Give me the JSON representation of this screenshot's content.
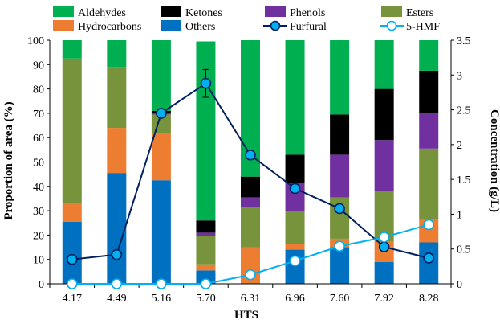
{
  "chart_data": {
    "type": "bar",
    "stacked": true,
    "categories": [
      "4.17",
      "4.49",
      "5.16",
      "5.70",
      "6.31",
      "6.96",
      "7.60",
      "7.92",
      "8.28"
    ],
    "xlabel": "HTS",
    "ylabel": "Proportion of area (%)",
    "y2label": "Concentration (g/L)",
    "ylim": [
      0,
      100
    ],
    "y2lim": [
      0,
      3.5
    ],
    "yticks": [
      0,
      10,
      20,
      30,
      40,
      50,
      60,
      70,
      80,
      90,
      100
    ],
    "y2ticks": [
      "0",
      "0.5",
      "1",
      "1.5",
      "2",
      "2.5",
      "3",
      "3.5"
    ],
    "legend_position": "top",
    "series": [
      {
        "name": "Others",
        "color": "#0070C0",
        "values": [
          25.5,
          45.5,
          42.5,
          5.5,
          0,
          14,
          15,
          9,
          17
        ]
      },
      {
        "name": "Hydrocarbons",
        "color": "#ED7D31",
        "values": [
          7.5,
          18.5,
          19.5,
          2.5,
          15,
          2.5,
          3.5,
          8.5,
          9.5
        ]
      },
      {
        "name": "Esters",
        "color": "#77933C",
        "values": [
          59.5,
          25,
          7.5,
          11.5,
          16.5,
          13.5,
          17,
          20.5,
          29
        ]
      },
      {
        "name": "Phenols",
        "color": "#7030A0",
        "values": [
          0,
          0,
          0.5,
          1.5,
          4,
          11.5,
          17.5,
          21,
          14.5
        ]
      },
      {
        "name": "Ketones",
        "color": "#000000",
        "values": [
          0,
          0,
          1,
          5,
          8.5,
          11.5,
          16.5,
          21,
          17.5
        ]
      },
      {
        "name": "Aldehydes",
        "color": "#00B050",
        "values": [
          7.5,
          11,
          29,
          73.5,
          56,
          47,
          30.5,
          20,
          12.5
        ]
      }
    ],
    "lines": [
      {
        "name": "Furfural",
        "axis": "y2",
        "color": "#002060",
        "marker_fill": "#00B0F0",
        "marker_edge": "#002060",
        "values": [
          0.35,
          0.42,
          2.45,
          2.88,
          1.85,
          1.37,
          1.08,
          0.53,
          0.37
        ],
        "error_bars": [
          0,
          0,
          0,
          0.2,
          0,
          0,
          0,
          0,
          0
        ]
      },
      {
        "name": "5-HMF",
        "axis": "y2",
        "color": "#00B0F0",
        "marker_fill": "#ffffff",
        "marker_edge": "#00B0F0",
        "values": [
          0,
          0,
          0,
          0,
          0.13,
          0.33,
          0.54,
          0.67,
          0.85
        ],
        "error_bars": [
          0,
          0,
          0,
          0,
          0,
          0,
          0,
          0,
          0
        ]
      }
    ],
    "legend": [
      {
        "name": "Aldehydes",
        "kind": "patch",
        "color": "#00B050"
      },
      {
        "name": "Ketones",
        "kind": "patch",
        "color": "#000000"
      },
      {
        "name": "Phenols",
        "kind": "patch",
        "color": "#7030A0"
      },
      {
        "name": "Esters",
        "kind": "patch",
        "color": "#77933C"
      },
      {
        "name": "Hydrocarbons",
        "kind": "patch",
        "color": "#ED7D31"
      },
      {
        "name": "Others",
        "kind": "patch",
        "color": "#0070C0"
      },
      {
        "name": "Furfural",
        "kind": "line",
        "color": "#002060",
        "marker_fill": "#00B0F0"
      },
      {
        "name": "5-HMF",
        "kind": "line",
        "color": "#00B0F0",
        "marker_fill": "#ffffff"
      }
    ]
  }
}
